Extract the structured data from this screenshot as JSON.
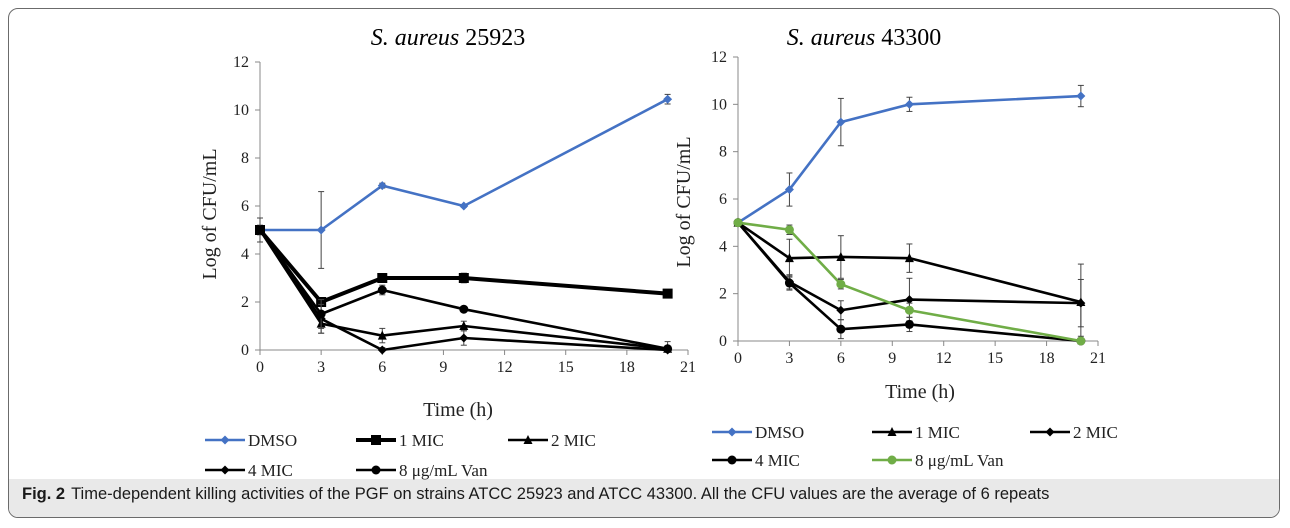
{
  "figure": {
    "caption_label": "Fig. 2",
    "caption_text": "Time-dependent killing activities of the PGF on strains ATCC 25923 and ATCC 43300. All the CFU values are the average of 6 repeats"
  },
  "chart_data": [
    {
      "type": "line",
      "title_prefix": "S. aureus",
      "title_number": "25923",
      "xlabel": "Time  (h)",
      "ylabel": "Log of CFU/mL",
      "xlim": [
        0,
        21
      ],
      "ylim": [
        0,
        12
      ],
      "xticks": [
        0,
        3,
        6,
        9,
        12,
        15,
        18,
        21
      ],
      "yticks": [
        0,
        2,
        4,
        6,
        8,
        10,
        12
      ],
      "legend_position": "bottom",
      "series": [
        {
          "name": "DMSO",
          "color": "#4472c4",
          "marker": "diamond",
          "x": [
            0,
            3,
            6,
            10,
            20
          ],
          "y": [
            5.0,
            5.0,
            6.85,
            6.0,
            10.45
          ],
          "err": [
            0.2,
            1.6,
            0.1,
            0.05,
            0.2
          ]
        },
        {
          "name": "1 MIC",
          "color": "#000000",
          "marker": "square",
          "thick": true,
          "x": [
            0,
            3,
            6,
            10,
            20
          ],
          "y": [
            5.0,
            2.0,
            3.0,
            3.0,
            2.35
          ],
          "err": [
            0.1,
            0.15,
            0.15,
            0.2,
            0.1
          ]
        },
        {
          "name": "2 MIC",
          "color": "#000000",
          "marker": "triangle",
          "x": [
            0,
            3,
            6,
            10,
            20
          ],
          "y": [
            5.0,
            1.1,
            0.6,
            1.0,
            0.05
          ],
          "err": [
            0.1,
            0.4,
            0.3,
            0.2,
            0.3
          ]
        },
        {
          "name": "4 MIC",
          "color": "#000000",
          "marker": "diamond",
          "x": [
            0,
            3,
            6,
            10,
            20
          ],
          "y": [
            5.0,
            1.3,
            0.0,
            0.5,
            0.0
          ],
          "err": [
            0.1,
            0.6,
            0.1,
            0.3,
            0.1
          ]
        },
        {
          "name": "8 μg/mL Van",
          "color": "#000000",
          "marker": "circle",
          "x": [
            0,
            3,
            6,
            10,
            20
          ],
          "y": [
            5.0,
            1.5,
            2.5,
            1.7,
            0.05
          ],
          "err": [
            0.5,
            0.6,
            0.2,
            0.1,
            0.1
          ]
        }
      ]
    },
    {
      "type": "line",
      "title_prefix": "S. aureus",
      "title_number": "43300",
      "xlabel": "Time (h)",
      "ylabel": "Log of CFU/mL",
      "xlim": [
        0,
        21
      ],
      "ylim": [
        0,
        12
      ],
      "xticks": [
        0,
        3,
        6,
        9,
        12,
        15,
        18,
        21
      ],
      "yticks": [
        0,
        2,
        4,
        6,
        8,
        10,
        12
      ],
      "legend_position": "bottom",
      "series": [
        {
          "name": "DMSO",
          "color": "#4472c4",
          "marker": "diamond",
          "x": [
            0,
            3,
            6,
            10,
            20
          ],
          "y": [
            5.0,
            6.4,
            9.25,
            10.0,
            10.35
          ],
          "err": [
            0.1,
            0.7,
            1.0,
            0.3,
            0.45
          ]
        },
        {
          "name": "1 MIC",
          "color": "#000000",
          "marker": "triangle",
          "x": [
            0,
            3,
            6,
            10,
            20
          ],
          "y": [
            5.0,
            3.5,
            3.55,
            3.5,
            1.65
          ],
          "err": [
            0.1,
            0.8,
            0.9,
            0.6,
            1.6
          ]
        },
        {
          "name": "2 MIC",
          "color": "#000000",
          "marker": "diamond",
          "x": [
            0,
            3,
            6,
            10,
            20
          ],
          "y": [
            5.0,
            2.5,
            1.3,
            1.75,
            1.6
          ],
          "err": [
            0.1,
            0.3,
            0.4,
            0.9,
            1.0
          ]
        },
        {
          "name": "4 MIC",
          "color": "#000000",
          "marker": "circle",
          "x": [
            0,
            3,
            6,
            10,
            20
          ],
          "y": [
            5.0,
            2.45,
            0.5,
            0.7,
            0.0
          ],
          "err": [
            0.1,
            0.3,
            0.4,
            0.3,
            0.2
          ]
        },
        {
          "name": "8 μg/mL Van",
          "color": "#70ad47",
          "marker": "circle",
          "x": [
            0,
            3,
            6,
            10,
            20
          ],
          "y": [
            5.0,
            4.7,
            2.4,
            1.3,
            0.0
          ],
          "err": [
            0.1,
            0.2,
            0.2,
            0.3,
            0.1
          ]
        }
      ]
    }
  ]
}
